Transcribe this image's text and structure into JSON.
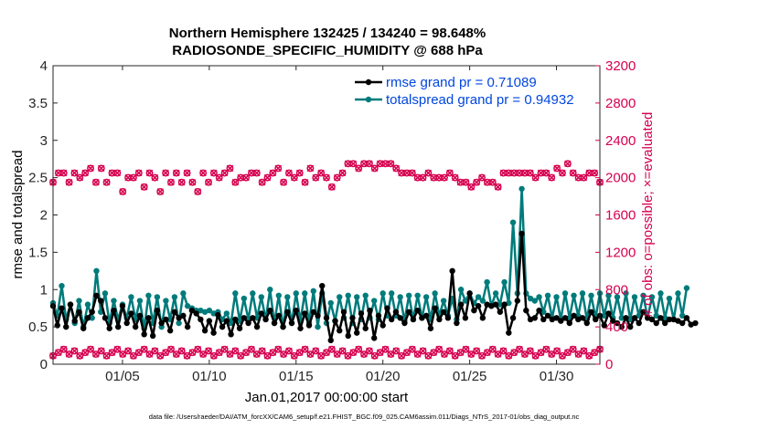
{
  "chart_data": {
    "type": "line",
    "title_line1": "Northern Hemisphere 132425 / 134240 = 98.648%",
    "title_line2": "RADIOSONDE_SPECIFIC_HUMIDITY @ 688 hPa",
    "xlabel": "Jan.01,2017 00:00:00 start",
    "ylabel_left": "rmse and totalspread",
    "ylabel_right": "# of obs: o=possible; ×=evaluated",
    "footnote": "data file: /Users/raeder/DAI/ATM_forcXX/CAM6_setup/f.e21.FHIST_BGC.f09_025.CAM6assim.011/Diags_NTrS_2017-01/obs_diag_output.nc",
    "xlim": [
      1,
      32.5
    ],
    "ylim_left": [
      0,
      4
    ],
    "ylim_right": [
      0,
      3200
    ],
    "x_ticks": [
      5,
      10,
      15,
      20,
      25,
      30
    ],
    "x_tick_labels": [
      "01/05",
      "01/10",
      "01/15",
      "01/20",
      "01/25",
      "01/30"
    ],
    "y_left_ticks": [
      0,
      0.5,
      1,
      1.5,
      2,
      2.5,
      3,
      3.5,
      4
    ],
    "y_left_tick_labels": [
      "0",
      "0.5",
      "1",
      "1.5",
      "2",
      "2.5",
      "3",
      "3.5",
      "4"
    ],
    "y_right_ticks": [
      0,
      400,
      800,
      1200,
      1600,
      2000,
      2400,
      2800,
      3200
    ],
    "y_right_tick_labels": [
      "0",
      "400",
      "800",
      "1200",
      "1600",
      "2000",
      "2400",
      "2800",
      "3200"
    ],
    "colors": {
      "rmse": "#000000",
      "spread": "#007b7b",
      "obs": "#d6004f",
      "legend_text": "#0046e0"
    },
    "start": 1,
    "step": 0.25,
    "series": [
      {
        "name": "rmse grand pr = 0.71089",
        "key": "rmse",
        "values": [
          0.78,
          0.52,
          0.75,
          0.5,
          0.8,
          0.58,
          0.7,
          0.48,
          0.62,
          0.7,
          0.92,
          0.85,
          0.62,
          0.48,
          0.72,
          0.5,
          0.78,
          0.55,
          0.68,
          0.5,
          0.65,
          0.4,
          0.62,
          0.38,
          0.72,
          0.55,
          0.6,
          0.45,
          0.7,
          0.62,
          0.65,
          0.5,
          0.72,
          0.68,
          0.6,
          0.45,
          0.58,
          0.42,
          0.66,
          0.5,
          0.58,
          0.4,
          0.6,
          0.48,
          0.62,
          0.55,
          0.62,
          0.5,
          0.68,
          0.6,
          0.72,
          0.55,
          0.65,
          0.5,
          0.7,
          0.55,
          0.72,
          0.48,
          0.68,
          0.52,
          0.7,
          0.65,
          1.05,
          0.62,
          0.32,
          0.58,
          0.45,
          0.7,
          0.38,
          0.62,
          0.42,
          0.68,
          0.48,
          0.72,
          0.35,
          0.65,
          0.52,
          0.75,
          0.6,
          0.7,
          0.62,
          0.55,
          0.7,
          0.6,
          0.72,
          0.62,
          0.65,
          0.48,
          0.75,
          0.6,
          0.7,
          0.62,
          1.25,
          0.55,
          0.8,
          0.62,
          0.95,
          0.72,
          0.78,
          0.62,
          0.8,
          0.78,
          0.8,
          0.7,
          0.8,
          0.42,
          0.62,
          0.85,
          1.75,
          0.72,
          0.6,
          0.62,
          0.72,
          0.6,
          0.65,
          0.6,
          0.62,
          0.58,
          0.62,
          0.55,
          0.65,
          0.6,
          0.62,
          0.55,
          0.7,
          0.6,
          0.65,
          0.52,
          0.68,
          0.58,
          0.55,
          0.5,
          0.62,
          0.5,
          0.62,
          0.55,
          0.7,
          0.62,
          0.6,
          0.55,
          0.62,
          0.55,
          0.6,
          0.6,
          0.58,
          0.55,
          0.62,
          0.53,
          0.55
        ]
      },
      {
        "name": "totalspread grand pr = 0.94932",
        "key": "spread",
        "values": [
          0.82,
          0.65,
          1.05,
          0.6,
          0.8,
          0.55,
          0.85,
          0.5,
          0.8,
          0.62,
          1.25,
          0.7,
          0.95,
          0.55,
          0.85,
          0.6,
          0.8,
          0.62,
          0.9,
          0.6,
          0.85,
          0.48,
          0.92,
          0.55,
          0.9,
          0.5,
          0.85,
          0.6,
          0.9,
          0.55,
          0.95,
          0.78,
          0.75,
          0.72,
          0.72,
          0.7,
          0.72,
          0.68,
          0.7,
          0.6,
          0.68,
          0.55,
          0.95,
          0.58,
          0.88,
          0.6,
          0.95,
          0.62,
          0.9,
          0.6,
          1.0,
          0.55,
          0.92,
          0.5,
          0.9,
          0.55,
          0.95,
          0.58,
          0.95,
          0.55,
          0.98,
          0.5,
          0.95,
          0.55,
          0.82,
          0.58,
          0.9,
          0.62,
          0.92,
          0.55,
          0.9,
          0.6,
          0.92,
          0.62,
          0.85,
          0.6,
          0.95,
          0.65,
          0.95,
          0.65,
          0.9,
          0.58,
          0.92,
          0.6,
          0.92,
          0.62,
          0.9,
          0.6,
          0.95,
          0.65,
          0.85,
          0.65,
          0.88,
          0.6,
          1.0,
          0.85,
          0.95,
          0.82,
          0.9,
          0.85,
          1.1,
          0.78,
          0.95,
          0.8,
          1.1,
          0.82,
          1.9,
          0.95,
          2.35,
          0.95,
          0.88,
          0.85,
          0.9,
          0.7,
          0.92,
          0.62,
          0.9,
          0.6,
          0.95,
          0.62,
          0.92,
          0.65,
          0.95,
          0.6,
          0.92,
          0.62,
          0.95,
          0.65,
          0.92,
          0.62,
          0.9,
          0.62,
          0.95,
          0.6,
          0.9,
          0.65,
          0.92,
          0.62,
          0.9,
          0.65,
          0.95,
          0.62,
          0.88,
          0.6,
          0.95,
          0.65,
          1.02
        ]
      }
    ],
    "obs_possible": [
      1950,
      2050,
      2050,
      1950,
      2050,
      2000,
      2050,
      2100,
      1950,
      2100,
      1950,
      2050,
      2050,
      1850,
      2000,
      2000,
      2050,
      1900,
      2050,
      2000,
      1850,
      2050,
      1950,
      2050,
      1950,
      2050,
      1950,
      1850,
      2050,
      1950,
      2050,
      2000,
      2050,
      2100,
      1950,
      2000,
      2000,
      2050,
      2050,
      1950,
      2000,
      2050,
      2100,
      1950,
      2050,
      2000,
      2050,
      1950,
      2100,
      2000,
      2050,
      2000,
      1900,
      2000,
      2050,
      2150,
      2150,
      2100,
      2150,
      2150,
      2100,
      2150,
      2150,
      2150,
      2100,
      2050,
      2050,
      2050,
      2000,
      2000,
      2050,
      2000,
      2000,
      2000,
      2050,
      2000,
      1950,
      1950,
      1900,
      1950,
      2000,
      1950,
      1950,
      1900,
      2050,
      2050,
      2050,
      2050,
      2050,
      2050,
      2000,
      2050,
      2050,
      2000,
      2100,
      2050,
      2150,
      2050,
      2000,
      2000,
      2050,
      2050,
      1950
    ]
  }
}
